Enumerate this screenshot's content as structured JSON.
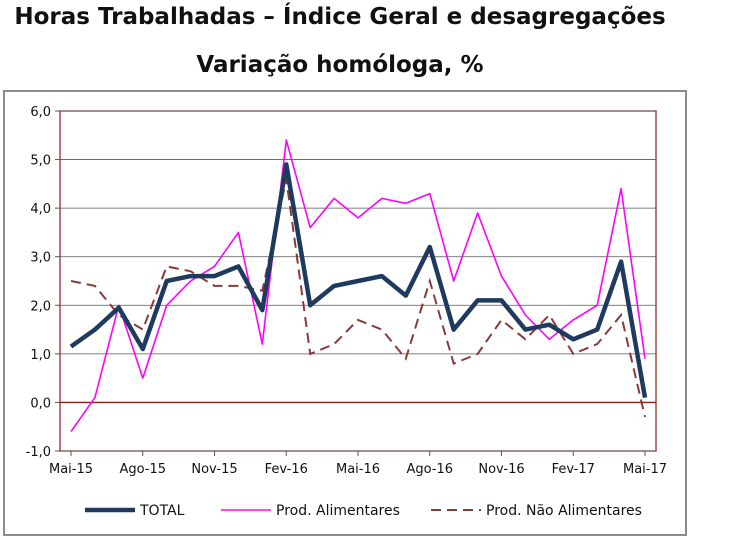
{
  "chart_data": {
    "type": "line",
    "title": "Horas Trabalhadas – Índice Geral e desagregações",
    "subtitle": "Variação homóloga, %",
    "xlabel": "",
    "ylabel": "",
    "ylim": [
      -1.0,
      6.0
    ],
    "yticks": [
      "-1,0",
      "0,0",
      "1,0",
      "2,0",
      "3,0",
      "4,0",
      "5,0",
      "6,0"
    ],
    "categories": [
      "Mai-15",
      "Jun-15",
      "Jul-15",
      "Ago-15",
      "Set-15",
      "Out-15",
      "Nov-15",
      "Dez-15",
      "Jan-16",
      "Fev-16",
      "Mar-16",
      "Abr-16",
      "Mai-16",
      "Jun-16",
      "Jul-16",
      "Ago-16",
      "Set-16",
      "Out-16",
      "Nov-16",
      "Dez-16",
      "Jan-17",
      "Fev-17",
      "Mar-17",
      "Abr-17",
      "Mai-17"
    ],
    "xtick_labels": [
      "Mai-15",
      "Ago-15",
      "Nov-15",
      "Fev-16",
      "Mai-16",
      "Ago-16",
      "Nov-16",
      "Fev-17",
      "Mai-17"
    ],
    "legend_position": "bottom",
    "series": [
      {
        "name": "TOTAL",
        "color": "#1f3a5f",
        "style": "solid-thick",
        "values": [
          1.15,
          1.5,
          1.95,
          1.1,
          2.5,
          2.6,
          2.6,
          2.8,
          1.9,
          4.9,
          2.0,
          2.4,
          2.5,
          2.6,
          2.2,
          3.2,
          1.5,
          2.1,
          2.1,
          1.5,
          1.6,
          1.3,
          1.5,
          2.9,
          0.1
        ]
      },
      {
        "name": "Prod. Alimentares",
        "color": "#ff00ff",
        "style": "solid-thin",
        "values": [
          -0.6,
          0.1,
          2.0,
          0.5,
          2.0,
          2.5,
          2.8,
          3.5,
          1.2,
          5.4,
          3.6,
          4.2,
          3.8,
          4.2,
          4.1,
          4.3,
          2.5,
          3.9,
          2.6,
          1.8,
          1.3,
          1.7,
          2.0,
          4.4,
          0.9
        ]
      },
      {
        "name": "Prod. Não Alimentares",
        "color": "#8b3a3a",
        "style": "dashed",
        "values": [
          2.5,
          2.4,
          1.8,
          1.5,
          2.8,
          2.7,
          2.4,
          2.4,
          2.3,
          4.6,
          1.0,
          1.2,
          1.7,
          1.5,
          0.9,
          2.5,
          0.8,
          1.0,
          1.7,
          1.3,
          1.8,
          1.0,
          1.2,
          1.8,
          -0.3
        ]
      }
    ]
  }
}
